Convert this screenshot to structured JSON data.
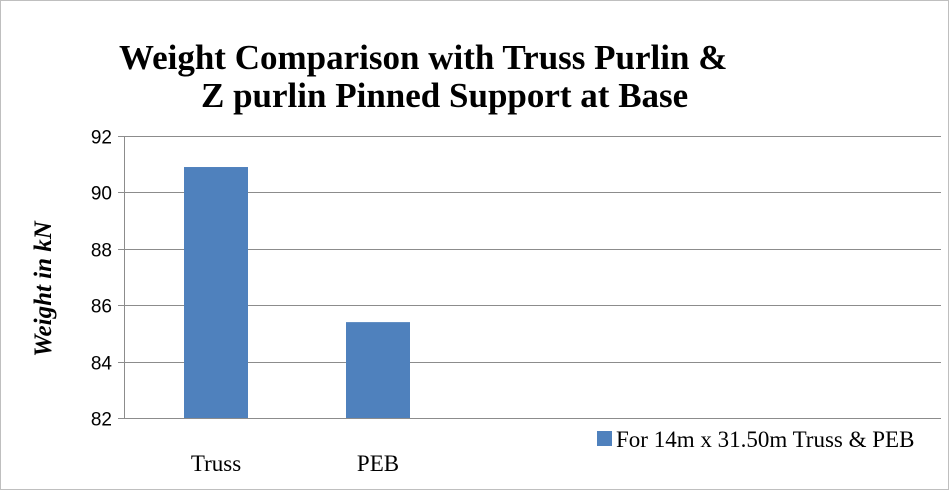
{
  "chart_data": {
    "type": "bar",
    "title_line1": "Weight Comparison with Truss Purlin &",
    "title_line2": "Z purlin Pinned Support at Base",
    "xlabel": "",
    "ylabel": "Weight in kN",
    "categories": [
      "Truss",
      "PEB"
    ],
    "series": [
      {
        "name": "For 14m x 31.50m Truss & PEB",
        "values": [
          90.9,
          85.4
        ],
        "color": "#4f81bd"
      }
    ],
    "ylim": [
      82,
      92
    ],
    "yticks": [
      82,
      84,
      86,
      88,
      90,
      92
    ],
    "grid": true,
    "gridline_color": "#8c8c8c",
    "legend_position": "bottom-right"
  }
}
